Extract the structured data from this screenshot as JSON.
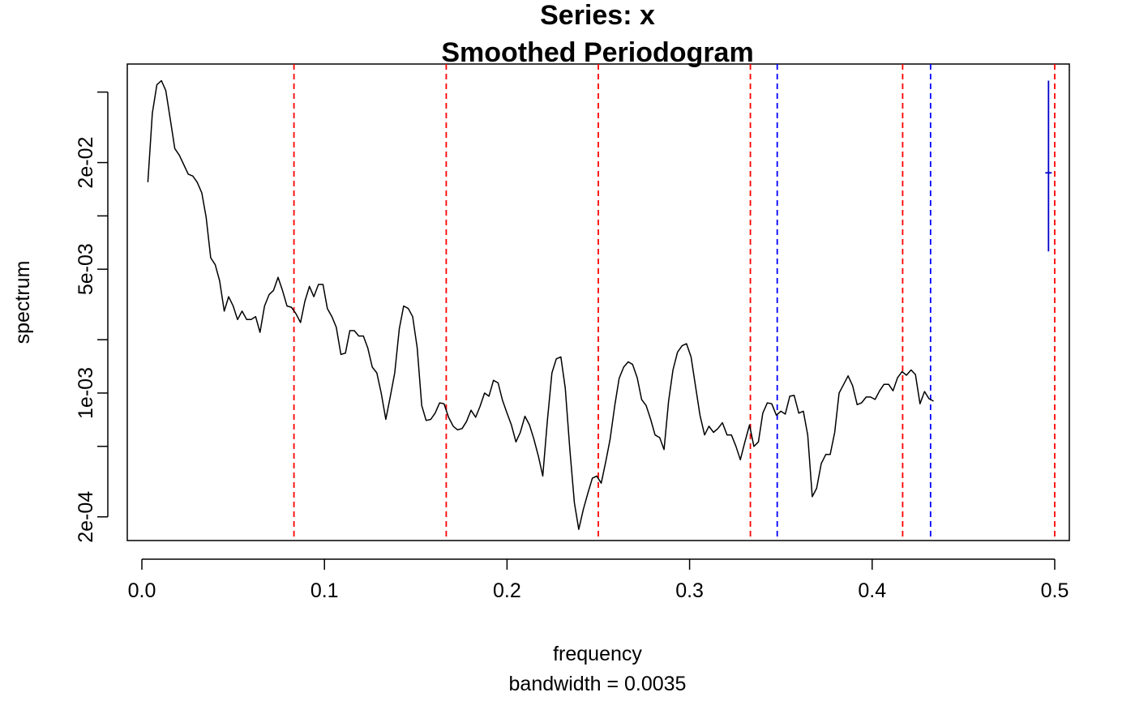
{
  "chart_data": {
    "type": "line",
    "title": "Series: x",
    "subtitle": "Smoothed Periodogram",
    "xlabel": "frequency",
    "sublabel": "bandwidth = 0.0035",
    "ylabel": "spectrum",
    "y_scale": "log",
    "xlim": [
      -0.008,
      0.508
    ],
    "ylim": [
      0.000147,
      0.072
    ],
    "x_ticks": [
      {
        "value": 0.0,
        "label": "0.0"
      },
      {
        "value": 0.1,
        "label": "0.1"
      },
      {
        "value": 0.2,
        "label": "0.2"
      },
      {
        "value": 0.3,
        "label": "0.3"
      },
      {
        "value": 0.4,
        "label": "0.4"
      },
      {
        "value": 0.5,
        "label": "0.5"
      }
    ],
    "y_ticks": [
      {
        "value": 0.0002,
        "label": "2e-04"
      },
      {
        "value": 0.0005,
        "label": ""
      },
      {
        "value": 0.001,
        "label": "1e-03"
      },
      {
        "value": 0.002,
        "label": ""
      },
      {
        "value": 0.005,
        "label": "5e-03"
      },
      {
        "value": 0.01,
        "label": ""
      },
      {
        "value": 0.02,
        "label": "2e-02"
      },
      {
        "value": 0.05,
        "label": ""
      }
    ],
    "series": [
      {
        "color": "#000000",
        "points": [
          [
            0.0033,
            0.0155
          ],
          [
            0.0057,
            0.038
          ],
          [
            0.0082,
            0.055
          ],
          [
            0.0107,
            0.058
          ],
          [
            0.0131,
            0.051
          ],
          [
            0.0156,
            0.035
          ],
          [
            0.018,
            0.024
          ],
          [
            0.0205,
            0.022
          ],
          [
            0.0229,
            0.0195
          ],
          [
            0.0254,
            0.0172
          ],
          [
            0.0279,
            0.0168
          ],
          [
            0.0303,
            0.0155
          ],
          [
            0.0328,
            0.0135
          ],
          [
            0.0352,
            0.0098
          ],
          [
            0.0377,
            0.0058
          ],
          [
            0.0402,
            0.0053
          ],
          [
            0.0426,
            0.0043
          ],
          [
            0.0451,
            0.0029
          ],
          [
            0.0475,
            0.0035
          ],
          [
            0.05,
            0.0031
          ],
          [
            0.0524,
            0.0026
          ],
          [
            0.0549,
            0.0029
          ],
          [
            0.0574,
            0.0026
          ],
          [
            0.0598,
            0.0026
          ],
          [
            0.0623,
            0.0027
          ],
          [
            0.0647,
            0.0022
          ],
          [
            0.0672,
            0.0031
          ],
          [
            0.0697,
            0.0036
          ],
          [
            0.0721,
            0.0038
          ],
          [
            0.0746,
            0.0045
          ],
          [
            0.077,
            0.0038
          ],
          [
            0.0795,
            0.0031
          ],
          [
            0.0819,
            0.00305
          ],
          [
            0.0844,
            0.0028
          ],
          [
            0.0869,
            0.0025
          ],
          [
            0.0893,
            0.0033
          ],
          [
            0.0918,
            0.004
          ],
          [
            0.0942,
            0.0035
          ],
          [
            0.0967,
            0.0041
          ],
          [
            0.0992,
            0.0041
          ],
          [
            0.1016,
            0.003
          ],
          [
            0.1041,
            0.0027
          ],
          [
            0.1065,
            0.00235
          ],
          [
            0.109,
            0.00165
          ],
          [
            0.1115,
            0.00168
          ],
          [
            0.1139,
            0.00225
          ],
          [
            0.1164,
            0.00225
          ],
          [
            0.1188,
            0.0021
          ],
          [
            0.1213,
            0.0021
          ],
          [
            0.1237,
            0.0018
          ],
          [
            0.1262,
            0.0014
          ],
          [
            0.1287,
            0.0013
          ],
          [
            0.1311,
            0.001
          ],
          [
            0.1336,
            0.00071
          ],
          [
            0.136,
            0.00095
          ],
          [
            0.1385,
            0.0013
          ],
          [
            0.141,
            0.0023
          ],
          [
            0.1434,
            0.0031
          ],
          [
            0.1459,
            0.003
          ],
          [
            0.1483,
            0.0027
          ],
          [
            0.1508,
            0.0018
          ],
          [
            0.1533,
            0.00085
          ],
          [
            0.1557,
            0.0007
          ],
          [
            0.1582,
            0.00071
          ],
          [
            0.1606,
            0.00077
          ],
          [
            0.1631,
            0.00088
          ],
          [
            0.1655,
            0.00087
          ],
          [
            0.168,
            0.00073
          ],
          [
            0.1705,
            0.00065
          ],
          [
            0.1729,
            0.00062
          ],
          [
            0.1754,
            0.00063
          ],
          [
            0.1778,
            0.00069
          ],
          [
            0.1803,
            0.0008
          ],
          [
            0.1828,
            0.00073
          ],
          [
            0.1852,
            0.00084
          ],
          [
            0.1877,
            0.001
          ],
          [
            0.1901,
            0.00096
          ],
          [
            0.1926,
            0.00118
          ],
          [
            0.1951,
            0.00114
          ],
          [
            0.1975,
            0.00091
          ],
          [
            0.2,
            0.00077
          ],
          [
            0.2024,
            0.00066
          ],
          [
            0.2049,
            0.00053
          ],
          [
            0.2073,
            0.0006
          ],
          [
            0.2098,
            0.00074
          ],
          [
            0.2123,
            0.00066
          ],
          [
            0.2147,
            0.00055
          ],
          [
            0.2172,
            0.00044
          ],
          [
            0.2196,
            0.00034
          ],
          [
            0.2221,
            0.0007
          ],
          [
            0.2246,
            0.0013
          ],
          [
            0.227,
            0.00156
          ],
          [
            0.2295,
            0.0016
          ],
          [
            0.2319,
            0.00107
          ],
          [
            0.2344,
            0.00048
          ],
          [
            0.2369,
            0.00024
          ],
          [
            0.2393,
            0.00017
          ],
          [
            0.2418,
            0.00022
          ],
          [
            0.2442,
            0.00027
          ],
          [
            0.2467,
            0.00033
          ],
          [
            0.2491,
            0.00034
          ],
          [
            0.2516,
            0.00031
          ],
          [
            0.2541,
            0.00041
          ],
          [
            0.2565,
            0.00055
          ],
          [
            0.259,
            0.00085
          ],
          [
            0.2614,
            0.00121
          ],
          [
            0.2639,
            0.0014
          ],
          [
            0.2664,
            0.0015
          ],
          [
            0.2688,
            0.00145
          ],
          [
            0.2713,
            0.00122
          ],
          [
            0.2737,
            0.00092
          ],
          [
            0.2762,
            0.00085
          ],
          [
            0.2787,
            0.00071
          ],
          [
            0.2811,
            0.00058
          ],
          [
            0.2836,
            0.00056
          ],
          [
            0.286,
            0.00048
          ],
          [
            0.2885,
            0.0009
          ],
          [
            0.2909,
            0.00135
          ],
          [
            0.2934,
            0.0017
          ],
          [
            0.2959,
            0.00185
          ],
          [
            0.2983,
            0.0019
          ],
          [
            0.3008,
            0.0016
          ],
          [
            0.3032,
            0.0011
          ],
          [
            0.3057,
            0.00075
          ],
          [
            0.3082,
            0.00058
          ],
          [
            0.3106,
            0.00065
          ],
          [
            0.3131,
            0.0006
          ],
          [
            0.3155,
            0.00063
          ],
          [
            0.318,
            0.00068
          ],
          [
            0.3205,
            0.00058
          ],
          [
            0.3229,
            0.00058
          ],
          [
            0.3254,
            0.0005
          ],
          [
            0.3278,
            0.00042
          ],
          [
            0.3303,
            0.00053
          ],
          [
            0.3328,
            0.00066
          ],
          [
            0.3352,
            0.0005
          ],
          [
            0.3377,
            0.00053
          ],
          [
            0.3401,
            0.00077
          ],
          [
            0.3426,
            0.00088
          ],
          [
            0.345,
            0.00087
          ],
          [
            0.3475,
            0.00075
          ],
          [
            0.35,
            0.00079
          ],
          [
            0.3524,
            0.00076
          ],
          [
            0.3549,
            0.00096
          ],
          [
            0.3573,
            0.00097
          ],
          [
            0.3598,
            0.00077
          ],
          [
            0.3623,
            0.00079
          ],
          [
            0.3647,
            0.00058
          ],
          [
            0.3672,
            0.00026
          ],
          [
            0.3696,
            0.00029
          ],
          [
            0.3721,
            0.0004
          ],
          [
            0.3746,
            0.00045
          ],
          [
            0.377,
            0.00045
          ],
          [
            0.3795,
            0.0006
          ],
          [
            0.3819,
            0.001
          ],
          [
            0.3844,
            0.00112
          ],
          [
            0.3868,
            0.00125
          ],
          [
            0.3893,
            0.0011
          ],
          [
            0.3918,
            0.00086
          ],
          [
            0.3942,
            0.00088
          ],
          [
            0.3967,
            0.00095
          ],
          [
            0.3991,
            0.00095
          ],
          [
            0.4016,
            0.00092
          ],
          [
            0.4041,
            0.00103
          ],
          [
            0.4065,
            0.00112
          ],
          [
            0.409,
            0.00112
          ],
          [
            0.4114,
            0.00103
          ],
          [
            0.4139,
            0.00122
          ],
          [
            0.4164,
            0.00132
          ],
          [
            0.4188,
            0.00126
          ],
          [
            0.4213,
            0.00135
          ],
          [
            0.4237,
            0.00127
          ],
          [
            0.4262,
            0.00087
          ],
          [
            0.4287,
            0.00102
          ],
          [
            0.4311,
            0.00093
          ],
          [
            0.4336,
            0.0009
          ]
        ]
      }
    ],
    "reference_lines": [
      {
        "x": 0.0833,
        "color": "#ff0000",
        "style": "dashed"
      },
      {
        "x": 0.1667,
        "color": "#ff0000",
        "style": "dashed"
      },
      {
        "x": 0.25,
        "color": "#ff0000",
        "style": "dashed"
      },
      {
        "x": 0.3333,
        "color": "#ff0000",
        "style": "dashed"
      },
      {
        "x": 0.348,
        "color": "#0000ff",
        "style": "dashed"
      },
      {
        "x": 0.4167,
        "color": "#ff0000",
        "style": "dashed"
      },
      {
        "x": 0.432,
        "color": "#0000ff",
        "style": "dashed"
      },
      {
        "x": 0.5,
        "color": "#ff0000",
        "style": "dashed"
      }
    ],
    "ci_bar": {
      "x": 0.4966,
      "y_low": 0.0063,
      "y_mid": 0.0175,
      "y_high": 0.058,
      "color": "#0000cc"
    },
    "grid": false
  }
}
